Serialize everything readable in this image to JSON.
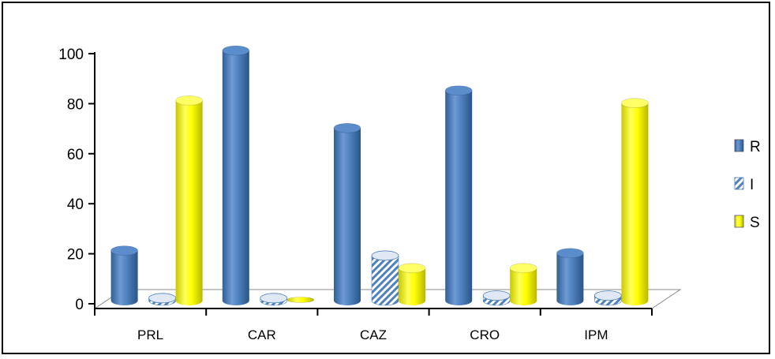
{
  "chart_data": {
    "type": "bar",
    "title": "",
    "xlabel": "",
    "ylabel": "",
    "ylim": [
      0,
      100
    ],
    "yticks": [
      "0",
      "20",
      "40",
      "60",
      "80",
      "100"
    ],
    "categories": [
      "PRL",
      "CAR",
      "CAZ",
      "CRO",
      "IPM"
    ],
    "series": [
      {
        "name": "R",
        "values": [
          20,
          100,
          69,
          84,
          19
        ],
        "color": "#4F81BD",
        "pattern": "solid"
      },
      {
        "name": "I",
        "values": [
          1,
          1,
          18,
          2,
          2
        ],
        "color": "#4F81BD",
        "pattern": "diagonal-stripes"
      },
      {
        "name": "S",
        "values": [
          80,
          0,
          13,
          13,
          79
        ],
        "color": "#FFFF00",
        "pattern": "solid"
      }
    ],
    "legend_position": "right",
    "style": "3d-cylinder",
    "grid": false
  }
}
